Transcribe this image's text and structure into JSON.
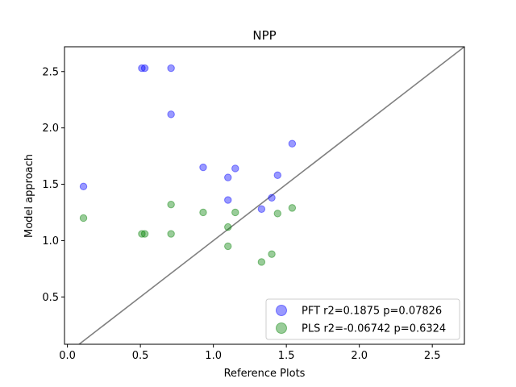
{
  "chart_data": {
    "type": "scatter",
    "title": "NPP",
    "xlabel": "Reference Plots",
    "ylabel": "Model approach",
    "xlim": [
      -0.02,
      2.72
    ],
    "ylim": [
      0.08,
      2.72
    ],
    "xticks": [
      "0.0",
      "0.5",
      "1.0",
      "1.5",
      "2.0",
      "2.5"
    ],
    "yticks": [
      "0.5",
      "1.0",
      "1.5",
      "2.0",
      "2.5"
    ],
    "grid": false,
    "legend_position": "bottom-right",
    "reference_line": {
      "label": "1:1",
      "color": "#808080"
    },
    "series": [
      {
        "name": "PFT r2=0.1875 p=0.07826",
        "color": "#0000ff",
        "points": [
          {
            "x": 0.11,
            "y": 1.48
          },
          {
            "x": 0.51,
            "y": 2.53
          },
          {
            "x": 0.53,
            "y": 2.53
          },
          {
            "x": 0.71,
            "y": 2.53
          },
          {
            "x": 0.71,
            "y": 2.12
          },
          {
            "x": 0.93,
            "y": 1.65
          },
          {
            "x": 1.1,
            "y": 1.56
          },
          {
            "x": 1.15,
            "y": 1.64
          },
          {
            "x": 1.1,
            "y": 1.36
          },
          {
            "x": 1.33,
            "y": 1.28
          },
          {
            "x": 1.4,
            "y": 1.38
          },
          {
            "x": 1.44,
            "y": 1.58
          },
          {
            "x": 1.54,
            "y": 1.86
          }
        ]
      },
      {
        "name": "PLS r2=-0.06742 p=0.6324",
        "color": "#008000",
        "points": [
          {
            "x": 0.11,
            "y": 1.2
          },
          {
            "x": 0.51,
            "y": 1.06
          },
          {
            "x": 0.53,
            "y": 1.06
          },
          {
            "x": 0.71,
            "y": 1.06
          },
          {
            "x": 0.71,
            "y": 1.32
          },
          {
            "x": 0.93,
            "y": 1.25
          },
          {
            "x": 1.1,
            "y": 1.12
          },
          {
            "x": 1.15,
            "y": 1.25
          },
          {
            "x": 1.1,
            "y": 0.95
          },
          {
            "x": 1.33,
            "y": 0.81
          },
          {
            "x": 1.4,
            "y": 0.88
          },
          {
            "x": 1.44,
            "y": 1.24
          },
          {
            "x": 1.54,
            "y": 1.29
          }
        ]
      }
    ]
  }
}
